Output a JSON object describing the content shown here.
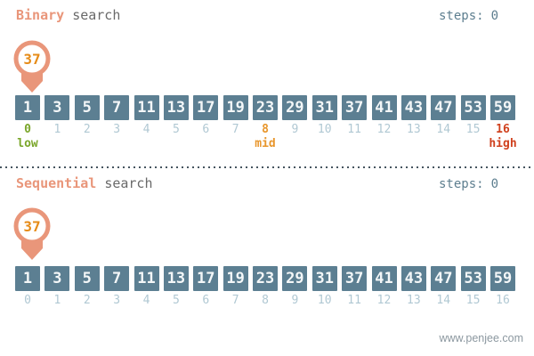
{
  "panels": [
    {
      "id": "binary",
      "title_keyword": "Binary",
      "title_rest": "search",
      "steps_label": "steps:",
      "steps_value": "0",
      "target_value": "37",
      "cells": [
        "1",
        "3",
        "5",
        "7",
        "11",
        "13",
        "17",
        "19",
        "23",
        "29",
        "31",
        "37",
        "41",
        "43",
        "47",
        "53",
        "59"
      ],
      "indices": [
        "0",
        "1",
        "2",
        "3",
        "4",
        "5",
        "6",
        "7",
        "8",
        "9",
        "10",
        "11",
        "12",
        "13",
        "14",
        "15",
        "16"
      ],
      "pointers": [
        {
          "label": "low",
          "index": 0
        },
        {
          "label": "mid",
          "index": 8
        },
        {
          "label": "high",
          "index": 16
        }
      ]
    },
    {
      "id": "sequential",
      "title_keyword": "Sequential",
      "title_rest": "search",
      "steps_label": "steps:",
      "steps_value": "0",
      "target_value": "37",
      "cells": [
        "1",
        "3",
        "5",
        "7",
        "11",
        "13",
        "17",
        "19",
        "23",
        "29",
        "31",
        "37",
        "41",
        "43",
        "47",
        "53",
        "59"
      ],
      "indices": [
        "0",
        "1",
        "2",
        "3",
        "4",
        "5",
        "6",
        "7",
        "8",
        "9",
        "10",
        "11",
        "12",
        "13",
        "14",
        "15",
        "16"
      ],
      "pointers": []
    }
  ],
  "footer": {
    "url": "www.penjee.com"
  },
  "colors": {
    "brand_salmon": "#e9967a",
    "target_orange": "#e68c19",
    "cell_blue": "#5c7f92",
    "index_light": "#b0c8d3",
    "low_green": "#7aa62a",
    "mid_orange": "#e8962c",
    "high_red": "#d0421f",
    "steps_text": "#5d7e8f",
    "divider_dot": "#46555f"
  }
}
